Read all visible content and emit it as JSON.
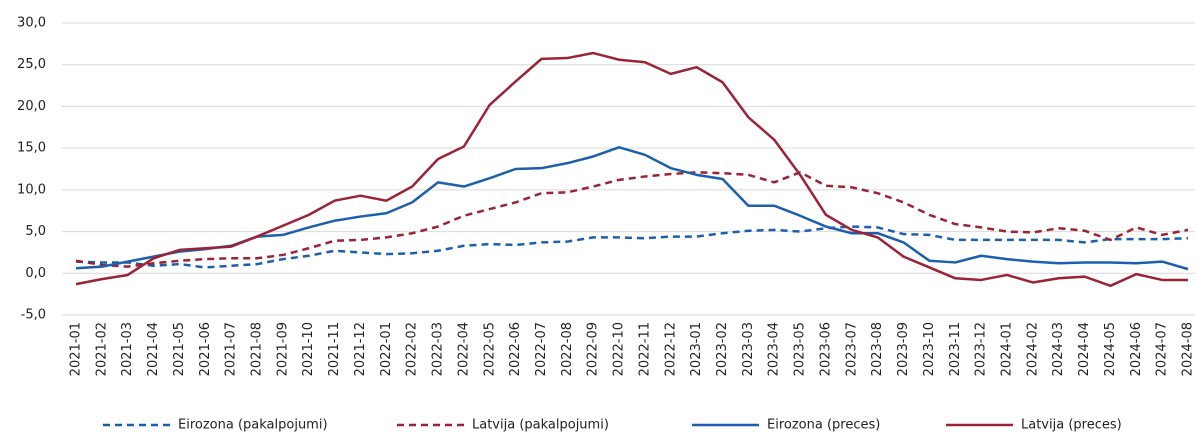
{
  "chart_data": {
    "type": "line",
    "categories": [
      "2021-01",
      "2021-02",
      "2021-03",
      "2021-04",
      "2021-05",
      "2021-06",
      "2021-07",
      "2021-08",
      "2021-09",
      "2021-10",
      "2021-11",
      "2021-12",
      "2022-01",
      "2022-02",
      "2022-03",
      "2022-04",
      "2022-05",
      "2022-06",
      "2022-07",
      "2022-08",
      "2022-09",
      "2022-10",
      "2022-11",
      "2022-12",
      "2023-01",
      "2023-02",
      "2023-03",
      "2023-04",
      "2023-05",
      "2023-06",
      "2023-07",
      "2023-08",
      "2023-09",
      "2023-10",
      "2023-11",
      "2023-12",
      "2024-01",
      "2024-02",
      "2024-03",
      "2024-04",
      "2024-05",
      "2024-06",
      "2024-07",
      "2024-08"
    ],
    "series": [
      {
        "name": "Eirozona (pakalpojumi)",
        "color": "#1b5fae",
        "line_style": "dashed",
        "values": [
          1.4,
          1.3,
          1.3,
          0.9,
          1.1,
          0.7,
          0.9,
          1.1,
          1.7,
          2.1,
          2.7,
          2.5,
          2.3,
          2.4,
          2.7,
          3.3,
          3.5,
          3.4,
          3.7,
          3.8,
          4.3,
          4.3,
          4.2,
          4.4,
          4.4,
          4.8,
          5.1,
          5.2,
          5.0,
          5.4,
          5.6,
          5.5,
          4.7,
          4.6,
          4.0,
          4.0,
          4.0,
          4.0,
          4.0,
          3.7,
          4.1,
          4.1,
          4.1,
          4.2
        ]
      },
      {
        "name": "Latvija (pakalpojumi)",
        "color": "#9b2335",
        "line_style": "dashed",
        "values": [
          1.5,
          1.0,
          0.8,
          1.2,
          1.5,
          1.7,
          1.8,
          1.8,
          2.2,
          3.0,
          3.9,
          4.0,
          4.3,
          4.8,
          5.6,
          6.9,
          7.7,
          8.5,
          9.6,
          9.7,
          10.4,
          11.2,
          11.6,
          11.9,
          12.1,
          12.0,
          11.8,
          10.9,
          12.1,
          10.5,
          10.3,
          9.6,
          8.5,
          7.0,
          5.9,
          5.5,
          5.0,
          4.9,
          5.4,
          5.1,
          4.0,
          5.5,
          4.6,
          5.2
        ]
      },
      {
        "name": "Eirozona (preces)",
        "color": "#1b5fae",
        "line_style": "solid",
        "values": [
          0.6,
          0.8,
          1.4,
          2.0,
          2.6,
          2.9,
          3.3,
          4.4,
          4.6,
          5.5,
          6.3,
          6.8,
          7.2,
          8.5,
          10.9,
          10.4,
          11.4,
          12.5,
          12.6,
          13.2,
          14.0,
          15.1,
          14.2,
          12.6,
          11.8,
          11.3,
          8.1,
          8.1,
          6.9,
          5.6,
          4.8,
          4.8,
          3.7,
          1.5,
          1.3,
          2.1,
          1.7,
          1.4,
          1.2,
          1.3,
          1.3,
          1.2,
          1.4,
          0.5
        ]
      },
      {
        "name": "Latvija (preces)",
        "color": "#9b2335",
        "line_style": "solid",
        "values": [
          -1.3,
          -0.7,
          -0.2,
          1.8,
          2.8,
          3.0,
          3.2,
          4.4,
          5.7,
          7.0,
          8.7,
          9.3,
          8.7,
          10.4,
          13.7,
          15.2,
          20.2,
          23.0,
          25.7,
          25.8,
          26.4,
          25.6,
          25.3,
          23.9,
          24.7,
          22.9,
          18.7,
          16.0,
          11.8,
          7.0,
          5.2,
          4.3,
          2.0,
          0.7,
          -0.6,
          -0.8,
          -0.2,
          -1.1,
          -0.6,
          -0.4,
          -1.5,
          -0.1,
          -0.8,
          -0.8
        ]
      }
    ],
    "ylim": [
      -5,
      30
    ],
    "yticks": [
      {
        "value": -5,
        "label": "-5,0"
      },
      {
        "value": 0,
        "label": "0,0"
      },
      {
        "value": 5,
        "label": "5,0"
      },
      {
        "value": 10,
        "label": "10,0"
      },
      {
        "value": 15,
        "label": "15,0"
      },
      {
        "value": 20,
        "label": "20,0"
      },
      {
        "value": 25,
        "label": "25,0"
      },
      {
        "value": 30,
        "label": "30,0"
      }
    ],
    "grid": true,
    "legend": "bottom"
  }
}
